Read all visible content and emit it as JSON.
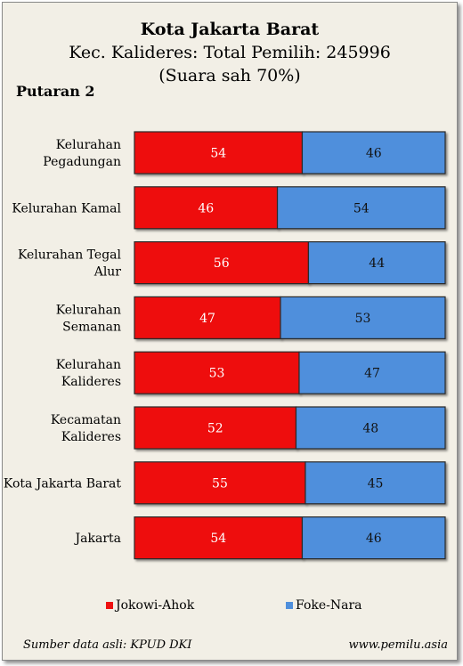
{
  "header": {
    "title": "Kota Jakarta Barat",
    "subtitle": "Kec. Kalideres: Total Pemilih: 245996",
    "note": "(Suara sah 70%)",
    "round": "Putaran 2"
  },
  "chart_data": {
    "type": "bar",
    "orientation": "horizontal",
    "stacked": "100%",
    "categories": [
      "Kelurahan Pegadungan",
      "Kelurahan Kamal",
      "Kelurahan Tegal Alur",
      "Kelurahan Semanan",
      "Kelurahan Kalideres",
      "Kecamatan Kalideres",
      "Kota Jakarta Barat",
      "Jakarta"
    ],
    "series": [
      {
        "name": "Jokowi-Ahok",
        "values": [
          54,
          46,
          56,
          47,
          53,
          52,
          55,
          54
        ],
        "color": "#ee1111"
      },
      {
        "name": "Foke-Nara",
        "values": [
          46,
          54,
          44,
          53,
          47,
          48,
          45,
          46
        ],
        "color": "#4f8fdc"
      }
    ],
    "xlim": [
      0,
      100
    ],
    "grid": false,
    "legend_position": "bottom"
  },
  "footer": {
    "source": "Sumber data asli: KPUD DKI",
    "site": "www.pemilu.asia"
  }
}
